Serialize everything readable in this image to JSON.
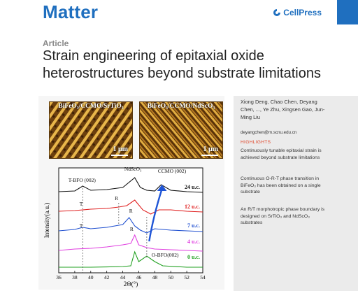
{
  "header": {
    "journal": "Matter",
    "publisher": "CellPress",
    "brand_color": "#1f6fbf"
  },
  "article": {
    "type": "Article",
    "title": "Strain engineering of epitaxial oxide heterostructures beyond substrate limitations"
  },
  "figure": {
    "afm_left": {
      "label": "BiFeO₃/CCMO/SrTiO₃",
      "scale": "1 μm"
    },
    "afm_right": {
      "label": "BiFeO₃/CCMO/NdScO₃",
      "scale": "1 μm"
    }
  },
  "sidebar": {
    "authors": "Xiong Deng, Chao Chen, Deyang Chen, ..., Ye Zhu, Xingsen Gao, Jun-Ming Liu",
    "email": "deyangchen@m.scnu.edu.cn",
    "highlights_title": "HIGHLIGHTS",
    "highlights": [
      "Continuously tunable epitaxial strain is achieved beyond substrate limitations",
      "Continuous O-R-T phase transition in BiFeO₃ has been obtained on a single substrate",
      "An R/T morphotropic phase boundary is designed on SrTiO₃ and NdScO₃ substrates"
    ]
  },
  "chart_data": {
    "type": "line",
    "xlabel": "2Θ(°)",
    "ylabel": "Intensity(a.u.)",
    "xlim": [
      36,
      54
    ],
    "x_ticks": [
      "36",
      "38",
      "40",
      "42",
      "44",
      "46",
      "48",
      "50",
      "52",
      "54"
    ],
    "series": [
      {
        "name": "24 u.c.",
        "color": "#111111",
        "points": [
          [
            36,
            0.9
          ],
          [
            38,
            0.95
          ],
          [
            39,
            1.3
          ],
          [
            40,
            1.0
          ],
          [
            42,
            1.05
          ],
          [
            44,
            1.2
          ],
          [
            45.5,
            1.9
          ],
          [
            46.2,
            1.2
          ],
          [
            47,
            1.0
          ],
          [
            48,
            0.95
          ],
          [
            48.8,
            1.4
          ],
          [
            50,
            1.0
          ],
          [
            52,
            0.9
          ],
          [
            54,
            0.85
          ]
        ]
      },
      {
        "name": "12 u.c.",
        "color": "#e02020",
        "points": [
          [
            36,
            0.9
          ],
          [
            38,
            0.95
          ],
          [
            40,
            1.05
          ],
          [
            42,
            1.1
          ],
          [
            43.5,
            1.2
          ],
          [
            44.5,
            1.3
          ],
          [
            45.5,
            1.7
          ],
          [
            46.5,
            1.0
          ],
          [
            47.5,
            0.7
          ],
          [
            48.5,
            1.0
          ],
          [
            50,
            1.0
          ],
          [
            52,
            0.9
          ],
          [
            54,
            0.85
          ]
        ]
      },
      {
        "name": "7 u.c.",
        "color": "#2050d0",
        "points": [
          [
            36,
            0.85
          ],
          [
            38,
            0.95
          ],
          [
            39,
            1.1
          ],
          [
            40,
            1.0
          ],
          [
            42,
            1.1
          ],
          [
            44,
            1.3
          ],
          [
            44.8,
            1.8
          ],
          [
            45.5,
            1.2
          ],
          [
            46.2,
            0.9
          ],
          [
            47,
            0.7
          ],
          [
            48,
            1.0
          ],
          [
            50,
            0.9
          ],
          [
            52,
            0.85
          ],
          [
            54,
            0.8
          ]
        ]
      },
      {
        "name": "4 u.c.",
        "color": "#e040e0",
        "points": [
          [
            36,
            0.6
          ],
          [
            38,
            0.7
          ],
          [
            40,
            0.75
          ],
          [
            42,
            0.85
          ],
          [
            44,
            1.0
          ],
          [
            45,
            1.1
          ],
          [
            45.5,
            1.7
          ],
          [
            46,
            1.0
          ],
          [
            47,
            0.8
          ],
          [
            48,
            0.7
          ],
          [
            50,
            0.65
          ],
          [
            52,
            0.6
          ],
          [
            54,
            0.55
          ]
        ]
      },
      {
        "name": "0 u.c.",
        "color": "#20a020",
        "points": [
          [
            36,
            0.5
          ],
          [
            38,
            0.5
          ],
          [
            40,
            0.5
          ],
          [
            42,
            0.52
          ],
          [
            44,
            0.55
          ],
          [
            45,
            0.6
          ],
          [
            45.5,
            1.6
          ],
          [
            46,
            0.9
          ],
          [
            47,
            1.3
          ],
          [
            48,
            0.9
          ],
          [
            49,
            0.6
          ],
          [
            52,
            0.5
          ],
          [
            54,
            0.5
          ]
        ]
      }
    ],
    "annotations": [
      "T-BFO (002)",
      "NdScO₃",
      "CCMO (002)",
      "R",
      "T",
      "O-BFO(002)"
    ]
  }
}
